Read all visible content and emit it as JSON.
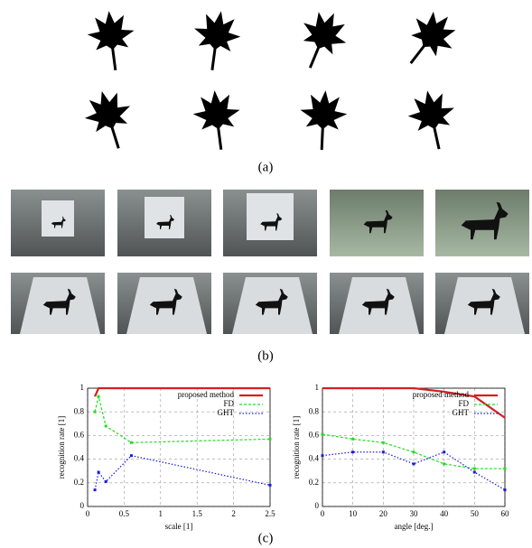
{
  "figure": {
    "captions": [
      "(a)",
      "(b)",
      "(c)"
    ]
  },
  "chart_data": [
    {
      "type": "line",
      "xlabel": "scale [1]",
      "ylabel": "recognition rate [1]",
      "xlim": [
        0,
        2.5
      ],
      "xticks": [
        0,
        0.5,
        1,
        1.5,
        2,
        2.5
      ],
      "ylim": [
        0,
        1
      ],
      "yticks": [
        0,
        0.2,
        0.4,
        0.6,
        0.8,
        1
      ],
      "grid": true,
      "legend": "top-right",
      "x": [
        0.1,
        0.15,
        0.25,
        0.6,
        2.5
      ],
      "series": [
        {
          "name": "proposed method",
          "color": "#d42020",
          "values": [
            0.93,
            1,
            1,
            1,
            1
          ]
        },
        {
          "name": "FD",
          "color": "#22dd22",
          "values": [
            0.8,
            0.93,
            0.68,
            0.54,
            0.57
          ]
        },
        {
          "name": "GHT",
          "color": "#1a1ae0",
          "values": [
            0.14,
            0.29,
            0.21,
            0.43,
            0.18
          ]
        }
      ]
    },
    {
      "type": "line",
      "xlabel": "angle [deg.]",
      "ylabel": "recognition rate [1]",
      "xlim": [
        0,
        60
      ],
      "xticks": [
        0,
        10,
        20,
        30,
        40,
        50,
        60
      ],
      "ylim": [
        0,
        1
      ],
      "yticks": [
        0,
        0.2,
        0.4,
        0.6,
        0.8,
        1
      ],
      "grid": true,
      "legend": "top-right",
      "x": [
        0,
        10,
        20,
        30,
        40,
        50,
        60
      ],
      "series": [
        {
          "name": "proposed method",
          "color": "#d42020",
          "values": [
            1,
            1,
            1,
            1,
            0.97,
            0.93,
            0.75
          ]
        },
        {
          "name": "FD",
          "color": "#22dd22",
          "values": [
            0.61,
            0.57,
            0.54,
            0.46,
            0.36,
            0.32,
            0.32
          ]
        },
        {
          "name": "GHT",
          "color": "#1a1ae0",
          "values": [
            0.43,
            0.46,
            0.46,
            0.36,
            0.46,
            0.29,
            0.14
          ]
        }
      ]
    }
  ]
}
